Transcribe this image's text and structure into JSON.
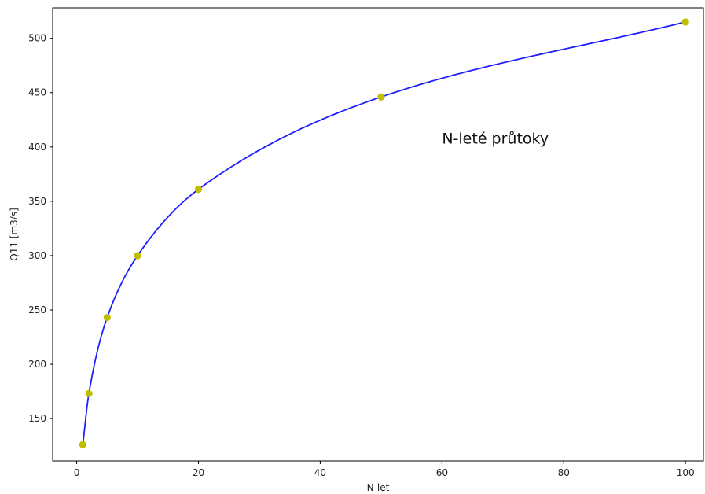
{
  "chart_data": {
    "type": "line",
    "title": "",
    "annotation": "N-leté průtoky",
    "annotation_anchor": [
      60,
      403
    ],
    "xlabel": "N-let",
    "ylabel": "Q11 [m3/s]",
    "xlim": [
      -3.95,
      102.95
    ],
    "ylim": [
      111,
      528
    ],
    "xticks": [
      0,
      20,
      40,
      60,
      80,
      100
    ],
    "yticks": [
      150,
      200,
      250,
      300,
      350,
      400,
      450,
      500
    ],
    "grid": false,
    "legend": "none",
    "series": [
      {
        "kind": "points",
        "color": "#bfbf00",
        "x": [
          1,
          2,
          5,
          10,
          20,
          50,
          100
        ],
        "y": [
          126,
          173,
          243,
          300,
          361,
          446,
          515
        ]
      },
      {
        "kind": "fitted-curve",
        "color": "#1f1fff",
        "x_range": [
          1,
          100
        ]
      }
    ]
  }
}
